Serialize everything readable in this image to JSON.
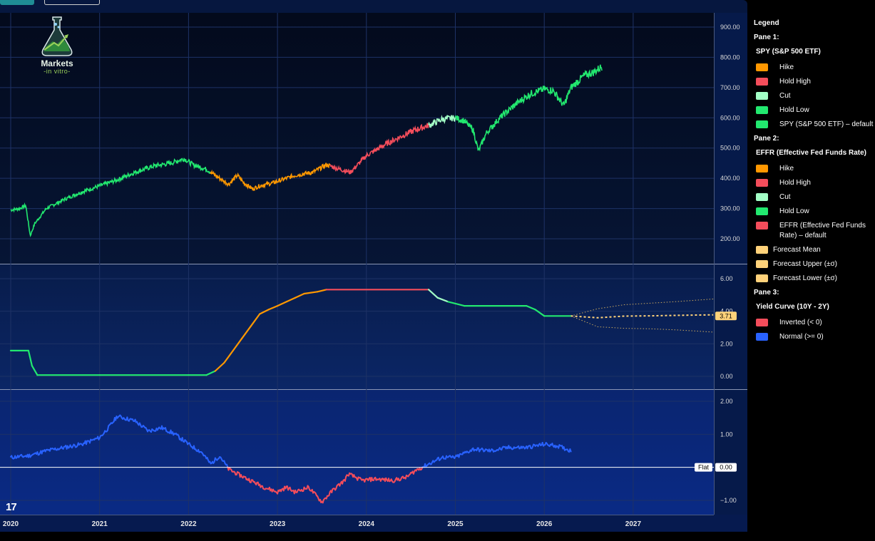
{
  "legend": {
    "title": "Legend",
    "panes": [
      {
        "pane_label": "Pane 1:",
        "series": [
          {
            "name": "SPY (S&P 500 ETF)",
            "items": [
              {
                "label": "Hike",
                "color": "#ff9800"
              },
              {
                "label": "Hold High",
                "color": "#f44d5b"
              },
              {
                "label": "Cut",
                "color": "#a3ffc6"
              },
              {
                "label": "Hold Low",
                "color": "#22e86f"
              },
              {
                "label": "SPY (S&P 500 ETF) – default",
                "color": "#22e86f"
              }
            ]
          }
        ]
      },
      {
        "pane_label": "Pane 2:",
        "series": [
          {
            "name": "EFFR (Effective Fed Funds Rate)",
            "items": [
              {
                "label": "Hike",
                "color": "#ff9800"
              },
              {
                "label": "Hold High",
                "color": "#f44d5b"
              },
              {
                "label": "Cut",
                "color": "#a3ffc6"
              },
              {
                "label": "Hold Low",
                "color": "#22e86f"
              },
              {
                "label": "EFFR (Effective Fed Funds Rate) – default",
                "color": "#f44d5b"
              }
            ],
            "forecast_items": [
              {
                "label": "Forecast Mean",
                "color": "#ffd27a"
              },
              {
                "label": "Forecast Upper (±σ)",
                "color": "#ffd27a"
              },
              {
                "label": "Forecast Lower (±σ)",
                "color": "#ffd27a"
              }
            ]
          }
        ]
      },
      {
        "pane_label": "Pane 3:",
        "series": [
          {
            "name": "Yield Curve (10Y - 2Y)",
            "items": [
              {
                "label": "Inverted (< 0)",
                "color": "#f44d5b"
              },
              {
                "label": "Normal (>= 0)",
                "color": "#2962ff"
              }
            ]
          }
        ]
      }
    ]
  },
  "logo": {
    "line1": "Markets",
    "line2": "-in vitro-"
  },
  "tv_logo": "17",
  "chart_data": [
    {
      "type": "line",
      "pane": 1,
      "series_name": "SPY (S&P 500 ETF)",
      "yticks": [
        200,
        300,
        400,
        500,
        600,
        700,
        800,
        900
      ],
      "ytick_labels": [
        "200.00",
        "300.00",
        "400.00",
        "500.00",
        "600.00",
        "700.00",
        "800.00",
        "900.00"
      ],
      "x": [
        2020.0,
        2020.1,
        2020.17,
        2020.22,
        2020.27,
        2020.4,
        2020.6,
        2020.8,
        2021.0,
        2021.2,
        2021.4,
        2021.6,
        2021.8,
        2021.95,
        2022.05,
        2022.2,
        2022.35,
        2022.45,
        2022.55,
        2022.62,
        2022.72,
        2022.8,
        2022.95,
        2023.1,
        2023.2,
        2023.4,
        2023.55,
        2023.7,
        2023.82,
        2024.0,
        2024.2,
        2024.4,
        2024.55,
        2024.7,
        2024.85,
        2025.0,
        2025.1,
        2025.2,
        2025.26,
        2025.35,
        2025.5,
        2025.7,
        2025.85,
        2026.0,
        2026.1,
        2026.22,
        2026.3,
        2026.45,
        2026.55,
        2026.65
      ],
      "y": [
        295,
        300,
        310,
        210,
        250,
        300,
        330,
        355,
        375,
        395,
        420,
        440,
        450,
        465,
        445,
        430,
        400,
        380,
        410,
        385,
        365,
        375,
        385,
        400,
        410,
        420,
        445,
        430,
        420,
        475,
        510,
        540,
        560,
        575,
        595,
        600,
        590,
        560,
        490,
        550,
        600,
        650,
        680,
        695,
        690,
        640,
        700,
        740,
        750,
        770
      ],
      "regime_segments": [
        {
          "x_start": 2020.0,
          "x_end": 2022.25,
          "regime": "Hold Low"
        },
        {
          "x_start": 2022.25,
          "x_end": 2023.6,
          "regime": "Hike"
        },
        {
          "x_start": 2023.6,
          "x_end": 2024.7,
          "regime": "Hold High"
        },
        {
          "x_start": 2024.7,
          "x_end": 2025.0,
          "regime": "Cut"
        },
        {
          "x_start": 2025.0,
          "x_end": 2026.7,
          "regime": "Hold Low"
        }
      ]
    },
    {
      "type": "line",
      "pane": 2,
      "series_name": "EFFR (Effective Fed Funds Rate)",
      "yticks": [
        0,
        2,
        4,
        6
      ],
      "ytick_labels": [
        "0.00",
        "2.00",
        "4.00",
        "6.00"
      ],
      "last_value_label": "3.71",
      "x": [
        2020.0,
        2020.2,
        2020.24,
        2020.3,
        2021.0,
        2022.0,
        2022.2,
        2022.3,
        2022.4,
        2022.5,
        2022.6,
        2022.7,
        2022.8,
        2022.9,
        2023.0,
        2023.1,
        2023.2,
        2023.3,
        2023.45,
        2023.55,
        2024.7,
        2024.8,
        2024.92,
        2025.1,
        2025.8,
        2025.9,
        2026.0,
        2026.3
      ],
      "y": [
        1.58,
        1.58,
        0.65,
        0.08,
        0.08,
        0.08,
        0.08,
        0.33,
        0.83,
        1.58,
        2.33,
        3.08,
        3.83,
        4.1,
        4.33,
        4.58,
        4.83,
        5.08,
        5.2,
        5.33,
        5.33,
        4.83,
        4.58,
        4.33,
        4.33,
        4.1,
        3.71,
        3.71
      ],
      "regime_segments": [
        {
          "x_start": 2020.0,
          "x_end": 2022.25,
          "regime": "Hold Low"
        },
        {
          "x_start": 2022.25,
          "x_end": 2023.55,
          "regime": "Hike"
        },
        {
          "x_start": 2023.55,
          "x_end": 2024.7,
          "regime": "Hold High"
        },
        {
          "x_start": 2024.7,
          "x_end": 2024.95,
          "regime": "Cut"
        },
        {
          "x_start": 2024.95,
          "x_end": 2026.3,
          "regime": "Hold Low"
        }
      ],
      "forecast": {
        "x": [
          2026.3,
          2026.6,
          2026.9,
          2027.2,
          2027.5,
          2027.9
        ],
        "mean": [
          3.71,
          3.6,
          3.7,
          3.72,
          3.75,
          3.78
        ],
        "upper": [
          3.71,
          4.15,
          4.4,
          4.5,
          4.6,
          4.75
        ],
        "lower": [
          3.71,
          3.05,
          2.95,
          2.92,
          2.85,
          2.72
        ]
      }
    },
    {
      "type": "line",
      "pane": 3,
      "series_name": "Yield Curve (10Y - 2Y)",
      "yticks": [
        -1,
        1,
        2
      ],
      "ytick_labels": [
        "−1.00",
        "1.00",
        "2.00"
      ],
      "zero_label": "Flat",
      "zero_value_label": "0.00",
      "x": [
        2020.0,
        2020.2,
        2020.4,
        2020.6,
        2020.8,
        2021.0,
        2021.1,
        2021.2,
        2021.4,
        2021.55,
        2021.7,
        2021.85,
        2022.0,
        2022.15,
        2022.25,
        2022.35,
        2022.45,
        2022.55,
        2022.7,
        2022.85,
        2023.0,
        2023.1,
        2023.2,
        2023.35,
        2023.5,
        2023.62,
        2023.75,
        2023.8,
        2023.95,
        2024.1,
        2024.3,
        2024.45,
        2024.55,
        2024.7,
        2024.85,
        2025.0,
        2025.2,
        2025.4,
        2025.6,
        2025.8,
        2026.0,
        2026.15,
        2026.3
      ],
      "y": [
        0.3,
        0.35,
        0.5,
        0.6,
        0.7,
        0.9,
        1.2,
        1.55,
        1.4,
        1.1,
        1.2,
        1.0,
        0.7,
        0.45,
        0.1,
        0.35,
        -0.05,
        -0.2,
        -0.4,
        -0.6,
        -0.75,
        -0.6,
        -0.75,
        -0.6,
        -1.05,
        -0.7,
        -0.4,
        -0.2,
        -0.4,
        -0.35,
        -0.4,
        -0.3,
        -0.1,
        0.1,
        0.3,
        0.3,
        0.55,
        0.5,
        0.6,
        0.6,
        0.7,
        0.65,
        0.5
      ],
      "sign_colors": {
        "negative": "Inverted (< 0)",
        "positive": "Normal (>= 0)"
      }
    }
  ],
  "x_axis": {
    "ticks": [
      2020,
      2021,
      2022,
      2023,
      2024,
      2025,
      2026,
      2027
    ],
    "labels": [
      "2020",
      "2021",
      "2022",
      "2023",
      "2024",
      "2025",
      "2026",
      "2027"
    ]
  }
}
